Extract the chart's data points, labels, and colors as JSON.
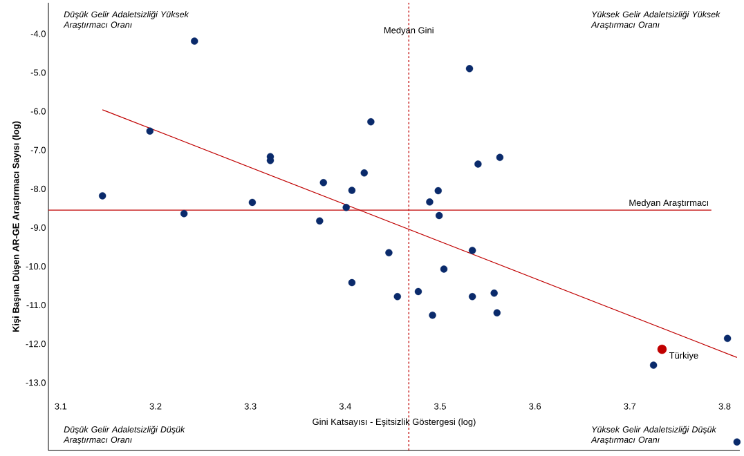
{
  "chart_data": {
    "type": "scatter",
    "xlabel": "Gini Katsayısı - Eşitsizlik Göstergesi (log)",
    "ylabel": "Kişi Başına Düşen AR-GE Araştırmacı Sayısı (log)",
    "xlim": [
      3.087,
      3.816
    ],
    "ylim": [
      -14.75,
      -3.2
    ],
    "xticks": [
      3.1,
      3.2,
      3.3,
      3.4,
      3.5,
      3.6,
      3.7,
      3.8
    ],
    "yticks": [
      {
        "value": -4,
        "label": "-4.0"
      },
      {
        "value": -5,
        "label": "-5.0"
      },
      {
        "value": -6,
        "label": "-6.0"
      },
      {
        "value": -7,
        "label": "-7.0"
      },
      {
        "value": -8,
        "label": "-8.0"
      },
      {
        "value": -9,
        "label": "-9.0"
      },
      {
        "value": -10,
        "label": "-10.0"
      },
      {
        "value": -11,
        "label": "-11.0"
      },
      {
        "value": -12,
        "label": "-12.0"
      },
      {
        "value": -13,
        "label": "-13.0"
      }
    ],
    "grid": false,
    "legend": false,
    "series": [
      {
        "marker": "circle",
        "color": "#0a2a6b",
        "x": [
          3.241,
          3.531,
          3.194,
          3.427,
          3.321,
          3.321,
          3.563,
          3.54,
          3.42,
          3.377,
          3.407,
          3.498,
          3.144,
          3.489,
          3.302,
          3.401,
          3.23,
          3.499,
          3.373,
          3.534,
          3.446,
          3.504,
          3.407,
          3.477,
          3.557,
          3.455,
          3.534,
          3.492,
          3.56,
          3.803,
          3.725,
          3.813
        ],
        "values": [
          -4.19,
          -4.9,
          -6.51,
          -6.27,
          -7.17,
          -7.27,
          -7.19,
          -7.36,
          -7.59,
          -7.84,
          -8.04,
          -8.05,
          -8.18,
          -8.34,
          -8.35,
          -8.48,
          -8.64,
          -8.69,
          -8.83,
          -9.59,
          -9.65,
          -10.07,
          -10.42,
          -10.65,
          -10.69,
          -10.78,
          -10.78,
          -11.26,
          -11.2,
          -11.86,
          -12.55,
          -14.53
        ]
      },
      {
        "name": "Türkiye",
        "marker": "circle",
        "color": "#c00000",
        "x": [
          3.734
        ],
        "values": [
          -12.14
        ]
      },
      {
        "type": "line",
        "marker": "none",
        "color": "#c00000",
        "x": [
          3.144,
          3.813
        ],
        "values": [
          -5.96,
          -12.35
        ]
      }
    ],
    "ref_lines": [
      {
        "axis": "x",
        "value": 3.467,
        "label": "Medyan Gini",
        "color": "#c00000",
        "line_style": "dashed"
      },
      {
        "axis": "y",
        "value": -8.55,
        "label": "Medyan Araştırmacı",
        "color": "#c00000",
        "line_style": "solid"
      }
    ],
    "annotations": [
      "Düşük Gelir Adaletsizliği Yüksek Araştırmacı Oranı",
      "Yüksek Gelir Adaletsizliği Yüksek Araştırmacı Oranı",
      "Düşük Gelir Adaletsizliği Düşük Araştırmacı Oranı",
      "Yüksek Gelir Adaletsizliği Düşük Araştırmacı Oranı"
    ]
  }
}
